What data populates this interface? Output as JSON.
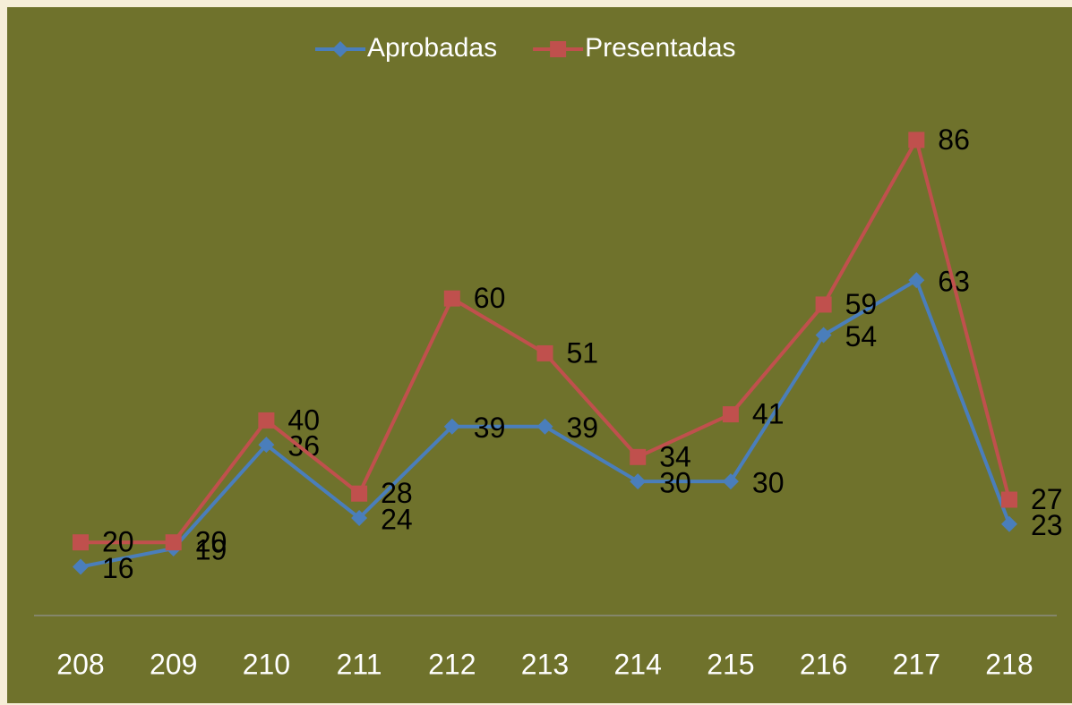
{
  "chart_data": {
    "type": "line",
    "categories": [
      "208",
      "209",
      "210",
      "211",
      "212",
      "213",
      "214",
      "215",
      "216",
      "217",
      "218"
    ],
    "series": [
      {
        "name": "Aprobadas",
        "color": "#4a7ebb",
        "values": [
          16,
          19,
          36,
          24,
          39,
          39,
          30,
          30,
          54,
          63,
          23
        ]
      },
      {
        "name": "Presentadas",
        "color": "#c0504d",
        "values": [
          20,
          20,
          40,
          28,
          60,
          51,
          34,
          41,
          59,
          86,
          27
        ]
      }
    ],
    "ylim": [
      8,
      100
    ],
    "legend": "top",
    "background": "#6f722c"
  }
}
